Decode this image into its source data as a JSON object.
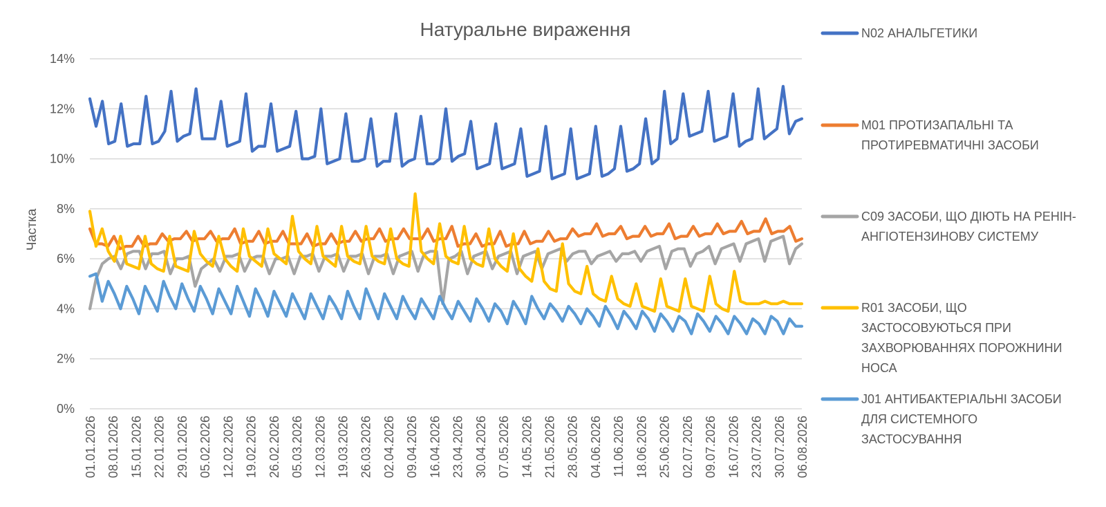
{
  "chart_data": {
    "type": "line",
    "title": "Натуральне вираження",
    "ylabel": "Частка",
    "xlabel": "",
    "ylim": [
      0,
      14
    ],
    "y_ticks": [
      "0%",
      "2%",
      "4%",
      "6%",
      "8%",
      "10%",
      "12%",
      "14%"
    ],
    "grid": true,
    "legend_position": "right",
    "x_ticks": [
      "01.01.2026",
      "08.01.2026",
      "15.01.2026",
      "22.01.2026",
      "29.01.2026",
      "05.02.2026",
      "12.02.2026",
      "19.02.2026",
      "26.02.2026",
      "05.03.2026",
      "12.03.2026",
      "19.03.2026",
      "26.03.2026",
      "02.04.2026",
      "09.04.2026",
      "16.04.2026",
      "23.04.2026",
      "30.04.2026",
      "07.05.2026",
      "14.05.2026",
      "21.05.2026",
      "28.05.2026",
      "04.06.2026",
      "11.06.2026",
      "18.06.2026",
      "25.06.2026",
      "02.07.2026",
      "09.07.2026",
      "16.07.2026",
      "23.07.2026",
      "30.07.2026",
      "06.08.2026"
    ],
    "series": [
      {
        "name": "N02 АНАЛЬГЕТИКИ",
        "legend_lines": [
          "N02 АНАЛЬГЕТИКИ"
        ],
        "color": "#4472C4",
        "values": [
          12.4,
          11.3,
          12.3,
          10.6,
          10.7,
          12.2,
          10.5,
          10.6,
          10.6,
          12.5,
          10.6,
          10.7,
          11.1,
          12.7,
          10.7,
          10.9,
          11.0,
          12.8,
          10.8,
          10.8,
          10.8,
          12.3,
          10.5,
          10.6,
          10.7,
          12.6,
          10.3,
          10.5,
          10.5,
          12.2,
          10.3,
          10.4,
          10.5,
          11.9,
          10.0,
          10.0,
          10.1,
          12.0,
          9.8,
          9.9,
          10.0,
          11.8,
          9.9,
          9.9,
          10.0,
          11.6,
          9.7,
          9.9,
          9.9,
          11.8,
          9.7,
          9.9,
          10.0,
          11.7,
          9.8,
          9.8,
          10.0,
          12.0,
          9.9,
          10.1,
          10.2,
          11.5,
          9.6,
          9.7,
          9.8,
          11.4,
          9.6,
          9.7,
          9.8,
          11.2,
          9.3,
          9.4,
          9.5,
          11.3,
          9.2,
          9.3,
          9.4,
          11.2,
          9.2,
          9.3,
          9.4,
          11.3,
          9.3,
          9.4,
          9.6,
          11.3,
          9.5,
          9.6,
          9.8,
          11.6,
          9.8,
          10.0,
          12.7,
          10.6,
          10.8,
          12.6,
          10.9,
          11.0,
          11.1,
          12.7,
          10.7,
          10.8,
          10.9,
          12.6,
          10.5,
          10.7,
          10.8,
          12.8,
          10.8,
          11.0,
          11.2,
          12.9,
          11.0,
          11.5,
          11.6
        ],
        "points_per_week": 3.5
      },
      {
        "name": "M01 ПРОТИЗАПАЛЬНІ ТА ПРОТИРЕВМАТИЧНІ ЗАСОБИ",
        "legend_lines": [
          "M01 ПРОТИЗАПАЛЬНІ ТА",
          "ПРОТИРЕВМАТИЧНІ ЗАСОБИ"
        ],
        "color": "#ED7D31",
        "values": [
          7.2,
          6.6,
          6.6,
          6.5,
          6.9,
          6.4,
          6.5,
          6.5,
          6.9,
          6.5,
          6.6,
          6.6,
          7.0,
          6.7,
          6.8,
          6.8,
          7.1,
          6.7,
          6.8,
          6.8,
          7.1,
          6.7,
          6.8,
          6.8,
          7.2,
          6.6,
          6.7,
          6.7,
          7.1,
          6.6,
          6.7,
          6.7,
          7.1,
          6.6,
          6.6,
          6.6,
          7.0,
          6.5,
          6.6,
          6.6,
          7.0,
          6.6,
          6.7,
          6.7,
          7.1,
          6.7,
          6.8,
          6.8,
          7.2,
          6.7,
          6.8,
          6.8,
          7.2,
          6.8,
          6.8,
          6.8,
          7.2,
          6.7,
          6.8,
          6.8,
          7.3,
          6.5,
          6.6,
          6.6,
          7.0,
          6.5,
          6.6,
          6.6,
          7.1,
          6.5,
          6.6,
          6.6,
          7.1,
          6.6,
          6.7,
          6.7,
          7.1,
          6.7,
          6.8,
          6.8,
          7.2,
          6.9,
          7.0,
          7.0,
          7.4,
          6.9,
          7.0,
          7.0,
          7.3,
          6.8,
          6.9,
          6.9,
          7.3,
          6.9,
          7.0,
          7.0,
          7.4,
          6.8,
          6.9,
          6.9,
          7.3,
          6.9,
          7.0,
          7.0,
          7.4,
          7.0,
          7.1,
          7.1,
          7.5,
          7.0,
          7.1,
          7.1,
          7.6,
          7.0,
          7.1,
          7.1,
          7.3,
          6.7,
          6.8
        ],
        "points_per_week": 3.5
      },
      {
        "name": "C09 ЗАСОБИ, ЩО ДІЮТЬ НА РЕНІН-АНГІОТЕНЗИНОВУ СИСТЕМУ",
        "legend_lines": [
          "C09 ЗАСОБИ, ЩО ДІЮТЬ НА РЕНІН-",
          "АНГІОТЕНЗИНОВУ СИСТЕМУ"
        ],
        "color": "#A5A5A5",
        "values": [
          4.0,
          5.2,
          5.8,
          6.0,
          6.1,
          5.6,
          6.2,
          6.3,
          6.3,
          5.6,
          6.2,
          6.2,
          6.3,
          5.4,
          6.0,
          6.0,
          6.1,
          4.9,
          5.6,
          5.8,
          6.0,
          5.5,
          6.1,
          6.1,
          6.2,
          5.5,
          6.0,
          6.1,
          6.1,
          5.4,
          6.0,
          6.0,
          6.1,
          5.4,
          6.1,
          6.1,
          6.2,
          5.5,
          6.1,
          6.1,
          6.2,
          5.5,
          6.1,
          6.1,
          6.2,
          5.4,
          6.1,
          6.1,
          6.2,
          5.4,
          6.1,
          6.2,
          6.3,
          5.5,
          6.2,
          6.3,
          6.3,
          4.2,
          6.0,
          6.1,
          6.3,
          5.4,
          6.1,
          6.2,
          6.3,
          5.6,
          6.1,
          6.2,
          6.3,
          5.4,
          6.1,
          6.2,
          6.3,
          5.6,
          6.2,
          6.3,
          6.4,
          5.9,
          6.2,
          6.3,
          6.3,
          5.8,
          6.1,
          6.2,
          6.3,
          5.9,
          6.2,
          6.2,
          6.3,
          5.9,
          6.3,
          6.4,
          6.5,
          5.6,
          6.3,
          6.4,
          6.4,
          5.7,
          6.2,
          6.3,
          6.5,
          5.8,
          6.4,
          6.5,
          6.6,
          5.9,
          6.6,
          6.7,
          6.8,
          5.9,
          6.7,
          6.8,
          6.9,
          5.8,
          6.4,
          6.6
        ],
        "points_per_week": 3.5
      },
      {
        "name": "R01 ЗАСОБИ, ЩО ЗАСТОСОВУЮТЬСЯ ПРИ ЗАХВОРЮВАННЯХ ПОРОЖНИНИ НОСА",
        "legend_lines": [
          "R01 ЗАСОБИ, ЩО",
          "ЗАСТОСОВУЮТЬСЯ ПРИ",
          "ЗАХВОРЮВАННЯХ ПОРОЖНИНИ",
          "НОСА"
        ],
        "color": "#FFC000",
        "values": [
          7.9,
          6.5,
          7.2,
          6.3,
          5.9,
          6.9,
          5.8,
          5.7,
          5.6,
          6.9,
          5.8,
          5.6,
          5.5,
          6.9,
          5.7,
          5.6,
          5.5,
          7.1,
          6.2,
          5.9,
          5.7,
          6.9,
          6.0,
          5.7,
          5.5,
          7.2,
          6.1,
          5.9,
          5.7,
          7.2,
          6.2,
          6.0,
          5.8,
          7.7,
          6.3,
          6.0,
          5.8,
          7.3,
          6.1,
          5.9,
          5.7,
          7.3,
          6.1,
          5.9,
          5.8,
          7.3,
          6.1,
          5.9,
          5.8,
          7.2,
          6.0,
          5.8,
          5.7,
          8.6,
          6.3,
          6.0,
          5.8,
          7.4,
          6.1,
          5.9,
          5.8,
          7.3,
          6.0,
          5.8,
          5.7,
          7.2,
          6.0,
          5.7,
          5.5,
          7.0,
          5.6,
          5.3,
          5.1,
          6.4,
          5.1,
          4.8,
          4.7,
          6.6,
          5.0,
          4.7,
          4.6,
          5.7,
          4.6,
          4.4,
          4.3,
          5.3,
          4.4,
          4.2,
          4.1,
          5.0,
          4.1,
          4.0,
          3.9,
          5.2,
          4.1,
          4.0,
          3.9,
          5.2,
          4.1,
          4.0,
          3.9,
          5.3,
          4.2,
          4.0,
          3.9,
          5.5,
          4.3,
          4.2,
          4.2,
          4.2,
          4.3,
          4.2,
          4.2,
          4.3,
          4.2,
          4.2,
          4.2
        ],
        "points_per_week": 3.5
      },
      {
        "name": "J01 АНТИБАКТЕРІАЛЬНІ ЗАСОБИ ДЛЯ СИСТЕМНОГО ЗАСТОСУВАННЯ",
        "legend_lines": [
          "J01 АНТИБАКТЕРІАЛЬНІ ЗАСОБИ",
          "ДЛЯ СИСТЕМНОГО",
          "ЗАСТОСУВАННЯ"
        ],
        "color": "#5B9BD5",
        "values": [
          5.3,
          5.4,
          4.3,
          5.1,
          4.6,
          4.0,
          4.9,
          4.4,
          3.8,
          4.9,
          4.4,
          3.9,
          5.1,
          4.5,
          4.0,
          5.0,
          4.4,
          3.9,
          4.9,
          4.4,
          3.8,
          4.8,
          4.3,
          3.8,
          4.9,
          4.3,
          3.7,
          4.8,
          4.3,
          3.7,
          4.7,
          4.2,
          3.7,
          4.6,
          4.1,
          3.6,
          4.6,
          4.1,
          3.6,
          4.5,
          4.1,
          3.6,
          4.7,
          4.1,
          3.6,
          4.8,
          4.2,
          3.6,
          4.6,
          4.1,
          3.6,
          4.5,
          4.0,
          3.6,
          4.4,
          4.0,
          3.6,
          4.5,
          4.0,
          3.6,
          4.3,
          3.9,
          3.5,
          4.4,
          4.0,
          3.5,
          4.2,
          3.9,
          3.4,
          4.3,
          3.9,
          3.4,
          4.5,
          4.0,
          3.6,
          4.2,
          3.9,
          3.5,
          4.1,
          3.8,
          3.4,
          4.0,
          3.7,
          3.3,
          4.1,
          3.7,
          3.2,
          3.9,
          3.6,
          3.2,
          3.9,
          3.6,
          3.1,
          3.8,
          3.5,
          3.1,
          3.7,
          3.5,
          3.0,
          3.8,
          3.5,
          3.1,
          3.7,
          3.4,
          3.0,
          3.7,
          3.4,
          3.0,
          3.6,
          3.4,
          3.0,
          3.7,
          3.5,
          3.0,
          3.6,
          3.3,
          3.3
        ],
        "points_per_week": 3.5
      }
    ]
  }
}
